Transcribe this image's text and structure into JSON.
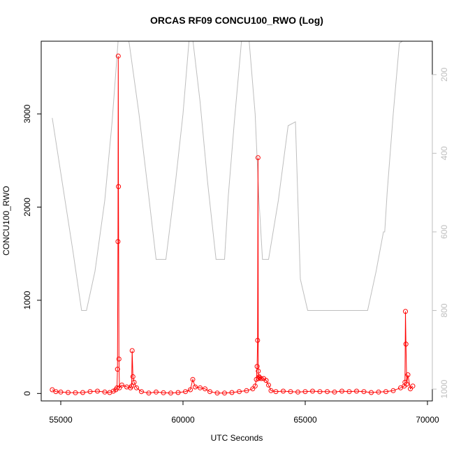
{
  "chart_data": {
    "type": "line",
    "title": "ORCAS RF09 CONCU100_RWO (Log)",
    "xlabel": "UTC Seconds",
    "ylabel": "CONCU100_RWO",
    "xlim": [
      54200,
      70200
    ],
    "ylim": [
      -80,
      3780
    ],
    "x_ticks": [
      55000,
      60000,
      65000,
      70000
    ],
    "y_ticks": [
      0,
      1000,
      2000,
      3000
    ],
    "right_axis": {
      "ticks": [
        200,
        400,
        600,
        800,
        1000
      ],
      "range": [
        115,
        1030
      ],
      "reversed": true,
      "color": "#bebebe"
    },
    "series": [
      {
        "color": "#ff0000",
        "style": "line+points",
        "x": [
          54650,
          54800,
          55000,
          55300,
          55600,
          55900,
          56200,
          56500,
          56800,
          57000,
          57150,
          57250,
          57300,
          57320,
          57340,
          57350,
          57360,
          57380,
          57400,
          57500,
          57700,
          57850,
          57900,
          57920,
          57950,
          58000,
          58100,
          58300,
          58600,
          58900,
          59200,
          59500,
          59800,
          60100,
          60300,
          60400,
          60500,
          60700,
          60900,
          61100,
          61400,
          61700,
          62000,
          62300,
          62600,
          62850,
          62950,
          63000,
          63030,
          63050,
          63070,
          63080,
          63090,
          63110,
          63130,
          63200,
          63300,
          63400,
          63500,
          63600,
          63800,
          64100,
          64400,
          64700,
          65000,
          65300,
          65600,
          65900,
          66200,
          66500,
          66800,
          67100,
          67400,
          67700,
          68000,
          68300,
          68600,
          68900,
          69050,
          69080,
          69100,
          69120,
          69150,
          69200,
          69300,
          69400
        ],
        "y": [
          40,
          20,
          15,
          10,
          8,
          10,
          20,
          25,
          15,
          10,
          25,
          40,
          60,
          260,
          1630,
          3620,
          2220,
          370,
          60,
          90,
          70,
          60,
          80,
          460,
          180,
          120,
          60,
          20,
          5,
          15,
          8,
          5,
          10,
          20,
          40,
          150,
          70,
          60,
          50,
          20,
          5,
          5,
          10,
          20,
          30,
          50,
          80,
          150,
          290,
          570,
          2530,
          240,
          160,
          180,
          170,
          160,
          160,
          140,
          90,
          30,
          20,
          25,
          20,
          15,
          20,
          25,
          20,
          20,
          15,
          25,
          20,
          25,
          20,
          10,
          15,
          20,
          30,
          60,
          80,
          120,
          880,
          530,
          100,
          200,
          50,
          80
        ]
      },
      {
        "color": "#bebebe",
        "style": "line",
        "axis": "right",
        "x": [
          54650,
          55000,
          55500,
          55850,
          56050,
          56400,
          56800,
          57100,
          57350,
          57500,
          57800,
          58200,
          58600,
          58900,
          59100,
          59300,
          59700,
          60000,
          60250,
          60400,
          60700,
          61000,
          61350,
          61700,
          61850,
          62100,
          62400,
          62700,
          62950,
          63100,
          63250,
          63500,
          63900,
          64300,
          64600,
          64800,
          65100,
          65400,
          65800,
          66500,
          67200,
          67550,
          67900,
          68200,
          68250,
          68350,
          68600,
          68850,
          69100,
          69450
        ],
        "y": [
          310,
          450,
          650,
          800,
          800,
          700,
          520,
          320,
          110,
          50,
          120,
          300,
          510,
          670,
          670,
          670,
          470,
          300,
          110,
          110,
          270,
          470,
          670,
          670,
          510,
          320,
          110,
          110,
          300,
          510,
          670,
          670,
          520,
          330,
          320,
          720,
          800,
          800,
          800,
          800,
          800,
          800,
          700,
          600,
          600,
          500,
          300,
          120,
          110,
          110
        ]
      }
    ]
  }
}
